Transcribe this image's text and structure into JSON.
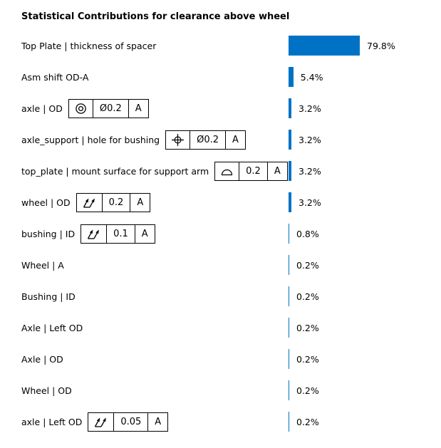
{
  "title": "Statistical Contributions for clearance above wheel",
  "chart_data": {
    "type": "bar",
    "orientation": "horizontal",
    "title": "Statistical Contributions for clearance above wheel",
    "categories": [
      "Top Plate | thickness of spacer",
      "Asm shift OD-A",
      "axle | OD",
      "axle_support | hole for bushing",
      "top_plate | mount surface for support arm",
      "wheel | OD",
      "bushing | ID",
      "Wheel | A",
      "Bushing | ID",
      "Axle | Left OD",
      "Axle | OD",
      "Wheel | OD",
      "axle | Left OD"
    ],
    "values": [
      79.8,
      5.4,
      3.2,
      3.2,
      3.2,
      3.2,
      0.8,
      0.2,
      0.2,
      0.2,
      0.2,
      0.2,
      0.2
    ],
    "value_labels": [
      "79.8%",
      "5.4%",
      "3.2%",
      "3.2%",
      "3.2%",
      "3.2%",
      "0.8%",
      "0.2%",
      "0.2%",
      "0.2%",
      "0.2%",
      "0.2%",
      "0.2%"
    ],
    "xlim": [
      0,
      100
    ],
    "grid": false,
    "legend": "none",
    "bar_color": "#0072C6"
  },
  "rows": [
    {
      "label": "Top Plate | thickness of spacer",
      "pct": "79.8%",
      "value": 79.8
    },
    {
      "label": "Asm shift OD-A",
      "pct": "5.4%",
      "value": 5.4
    },
    {
      "label": "axle | OD",
      "pct": "3.2%",
      "value": 3.2,
      "fcf": {
        "symbol": "concentricity",
        "tol": "Ø0.2",
        "datum": "A"
      }
    },
    {
      "label": "axle_support | hole for bushing",
      "pct": "3.2%",
      "value": 3.2,
      "fcf": {
        "symbol": "position",
        "tol": "Ø0.2",
        "datum": "A"
      }
    },
    {
      "label": "top_plate | mount surface for support arm",
      "pct": "3.2%",
      "value": 3.2,
      "fcf": {
        "symbol": "profile-of-surface",
        "tol": "0.2",
        "datum": "A"
      }
    },
    {
      "label": "wheel | OD",
      "pct": "3.2%",
      "value": 3.2,
      "fcf": {
        "symbol": "total-runout",
        "tol": "0.2",
        "datum": "A"
      }
    },
    {
      "label": "bushing | ID",
      "pct": "0.8%",
      "value": 0.8,
      "fcf": {
        "symbol": "total-runout",
        "tol": "0.1",
        "datum": "A"
      }
    },
    {
      "label": "Wheel | A",
      "pct": "0.2%",
      "value": 0.2
    },
    {
      "label": "Bushing | ID",
      "pct": "0.2%",
      "value": 0.2
    },
    {
      "label": "Axle | Left OD",
      "pct": "0.2%",
      "value": 0.2
    },
    {
      "label": "Axle | OD",
      "pct": "0.2%",
      "value": 0.2
    },
    {
      "label": "Wheel | OD",
      "pct": "0.2%",
      "value": 0.2
    },
    {
      "label": "axle | Left OD",
      "pct": "0.2%",
      "value": 0.2,
      "fcf": {
        "symbol": "total-runout",
        "tol": "0.05",
        "datum": "A"
      }
    }
  ]
}
